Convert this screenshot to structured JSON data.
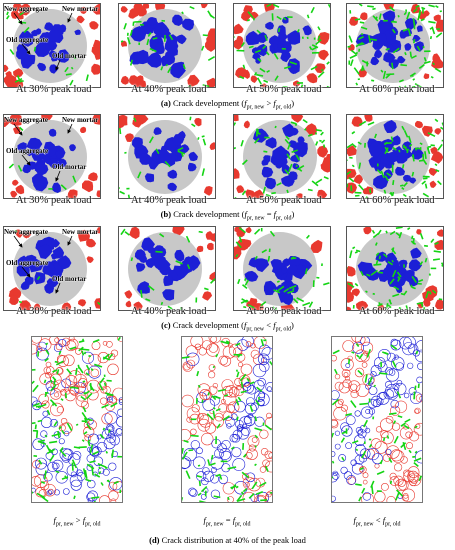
{
  "labels": {
    "new_aggregate": "New aggregate",
    "new_mortar": "New mortar",
    "old_aggregate": "Old aggregate",
    "old_mortar": "Old mortar"
  },
  "peak_labels": [
    "At 30% peak load",
    "At 40% peak load",
    "At 50% peak load",
    "At 60% peak load"
  ],
  "captions": {
    "a": {
      "label": "(a)",
      "text": "Crack development (",
      "sym": "f",
      "sub_new": "pr, new",
      "rel": " > ",
      "sub_old": "pr, old",
      "close": ")"
    },
    "b": {
      "label": "(b)",
      "text": "Crack development (",
      "sym": "f",
      "sub_new": "pr, new",
      "rel": " = ",
      "sub_old": "pr, old",
      "close": ")"
    },
    "c": {
      "label": "(c)",
      "text": "Crack development (",
      "sym": "f",
      "sub_new": "pr, new",
      "rel": " < ",
      "sub_old": "pr, old",
      "close": ")"
    },
    "d": {
      "label": "(d)",
      "text": "Crack distribution at 40% of the peak load"
    }
  },
  "d_labels": [
    {
      "sym": "f",
      "sub_new": "pr, new",
      "rel": " > ",
      "sub_old": "pr, old"
    },
    {
      "sym": "f",
      "sub_new": "pr, new",
      "rel": " = ",
      "sub_old": "pr, old"
    },
    {
      "sym": "f",
      "sub_new": "pr, new",
      "rel": " < ",
      "sub_old": "pr, old"
    }
  ],
  "colors": {
    "new_aggregate": "#e8392f",
    "old_aggregate": "#1c1fd6",
    "old_mortar": "#c8c8c8",
    "crack": "#14d414"
  }
}
